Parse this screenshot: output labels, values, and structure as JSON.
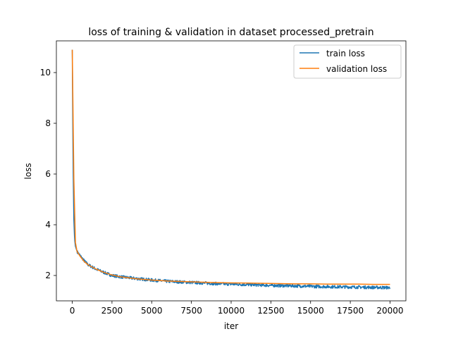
{
  "chart_data": {
    "type": "line",
    "title": "loss of training & validation in dataset processed_pretrain",
    "xlabel": "iter",
    "ylabel": "loss",
    "xlim": [
      -1000,
      21000
    ],
    "ylim": [
      1.0,
      11.25
    ],
    "xticks": [
      0,
      2500,
      5000,
      7500,
      10000,
      12500,
      15000,
      17500,
      20000
    ],
    "yticks": [
      2,
      4,
      6,
      8,
      10
    ],
    "grid": false,
    "legend": "top-right",
    "series": [
      {
        "name": "train loss",
        "color": "#1f77b4",
        "noisy": true,
        "x": [
          0,
          50,
          100,
          150,
          200,
          300,
          500,
          750,
          1000,
          1500,
          2000,
          2500,
          3000,
          4000,
          5000,
          6000,
          7000,
          8000,
          9000,
          10000,
          11000,
          12000,
          13000,
          14000,
          15000,
          16000,
          17000,
          18000,
          19000,
          20000
        ],
        "y": [
          10.9,
          6.5,
          4.2,
          3.4,
          3.15,
          2.95,
          2.78,
          2.58,
          2.42,
          2.25,
          2.12,
          2.0,
          1.95,
          1.88,
          1.82,
          1.77,
          1.74,
          1.71,
          1.68,
          1.66,
          1.64,
          1.62,
          1.6,
          1.59,
          1.57,
          1.56,
          1.55,
          1.54,
          1.53,
          1.52
        ]
      },
      {
        "name": "validation loss",
        "color": "#ff7f0e",
        "noisy": false,
        "x": [
          0,
          100,
          200,
          300,
          500,
          750,
          1000,
          1500,
          2000,
          2500,
          3000,
          4000,
          5000,
          6000,
          7000,
          8000,
          9000,
          10000,
          11000,
          12000,
          13000,
          14000,
          15000,
          16000,
          17000,
          18000,
          19000,
          20000
        ],
        "y": [
          10.9,
          5.8,
          3.3,
          2.95,
          2.75,
          2.55,
          2.42,
          2.25,
          2.12,
          2.02,
          1.95,
          1.87,
          1.82,
          1.78,
          1.76,
          1.74,
          1.72,
          1.71,
          1.7,
          1.69,
          1.68,
          1.67,
          1.67,
          1.66,
          1.66,
          1.66,
          1.65,
          1.65
        ]
      }
    ]
  }
}
